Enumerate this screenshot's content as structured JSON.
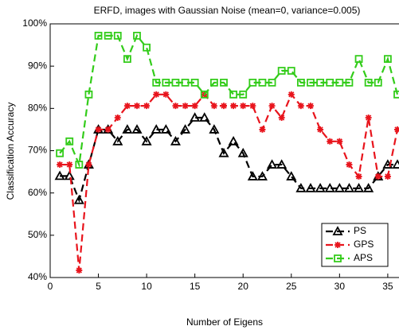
{
  "chart_data": {
    "type": "line",
    "title": "ERFD, images with Gaussian Noise (mean=0, variance=0.005)",
    "x_label": "Number of Eigens",
    "y_label": "Classification Accuracy",
    "x": [
      1,
      2,
      3,
      4,
      5,
      6,
      7,
      8,
      9,
      10,
      11,
      12,
      13,
      14,
      15,
      16,
      17,
      18,
      19,
      20,
      21,
      22,
      23,
      24,
      25,
      26,
      27,
      28,
      29,
      30,
      31,
      32,
      33,
      34,
      35,
      36
    ],
    "series": [
      {
        "name": "PS",
        "color": "#000000",
        "marker": "triangle",
        "values": [
          64,
          64,
          58.3,
          66.7,
          75,
          75,
          72.2,
          75,
          75,
          72.2,
          75,
          75,
          72.2,
          75,
          77.8,
          77.8,
          75,
          69.4,
          72.2,
          69.4,
          63.9,
          63.9,
          66.7,
          66.7,
          63.9,
          61.1,
          61.1,
          61.1,
          61.1,
          61.1,
          61.1,
          61.1,
          61.1,
          63.9,
          66.7,
          66.7
        ]
      },
      {
        "name": "GPS",
        "color": "#e8141c",
        "marker": "star",
        "values": [
          66.7,
          66.7,
          41.7,
          66.7,
          75,
          75,
          77.8,
          80.6,
          80.6,
          80.6,
          83.3,
          83.3,
          80.6,
          80.6,
          80.6,
          83.3,
          80.6,
          80.6,
          80.6,
          80.6,
          80.6,
          75,
          80.6,
          77.8,
          83.3,
          80.6,
          80.6,
          75,
          72.2,
          72.2,
          66.7,
          63.9,
          77.8,
          63.9,
          63.9,
          75
        ]
      },
      {
        "name": "APS",
        "color": "#33cc1a",
        "marker": "square",
        "values": [
          69.4,
          72.2,
          66.7,
          83.3,
          97.2,
          97.2,
          97.2,
          91.7,
          97.2,
          94.4,
          86.1,
          86.1,
          86.1,
          86.1,
          86.1,
          83.3,
          86.1,
          86.1,
          83.3,
          83.3,
          86.1,
          86.1,
          86.1,
          88.9,
          88.9,
          86.1,
          86.1,
          86.1,
          86.1,
          86.1,
          86.1,
          91.7,
          86.1,
          86.1,
          91.7,
          83.3
        ]
      }
    ],
    "xlim": [
      0,
      36
    ],
    "xticks": [
      0,
      5,
      10,
      15,
      20,
      25,
      30,
      35
    ],
    "ylim": [
      40,
      100
    ],
    "yticks": [
      {
        "value": 40,
        "label": "40%"
      },
      {
        "value": 50,
        "label": "50%"
      },
      {
        "value": 60,
        "label": "60%"
      },
      {
        "value": 70,
        "label": "70%"
      },
      {
        "value": 80,
        "label": "80%"
      },
      {
        "value": 90,
        "label": "90%"
      },
      {
        "value": 100,
        "label": "100%"
      }
    ],
    "legend": "lower right"
  }
}
